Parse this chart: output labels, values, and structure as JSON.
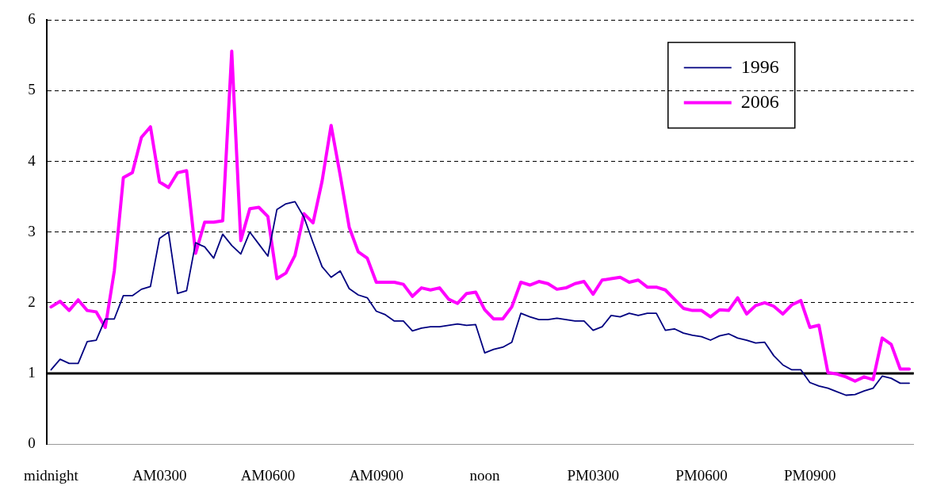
{
  "chart_data": {
    "type": "line",
    "categories": [
      "midnight",
      null,
      null,
      null,
      null,
      null,
      null,
      null,
      null,
      null,
      null,
      null,
      "AM0300",
      null,
      null,
      null,
      null,
      null,
      null,
      null,
      null,
      null,
      null,
      null,
      "AM0600",
      null,
      null,
      null,
      null,
      null,
      null,
      null,
      null,
      null,
      null,
      null,
      "AM0900",
      null,
      null,
      null,
      null,
      null,
      null,
      null,
      null,
      null,
      null,
      null,
      "noon",
      null,
      null,
      null,
      null,
      null,
      null,
      null,
      null,
      null,
      null,
      null,
      "PM0300",
      null,
      null,
      null,
      null,
      null,
      null,
      null,
      null,
      null,
      null,
      null,
      "PM0600",
      null,
      null,
      null,
      null,
      null,
      null,
      null,
      null,
      null,
      null,
      null,
      "PM0900",
      null,
      null,
      null,
      null,
      null,
      null,
      null,
      null,
      null,
      null,
      null
    ],
    "series": [
      {
        "name": "1996",
        "color": "#000080",
        "values": [
          1.05,
          1.2,
          1.14,
          1.14,
          1.45,
          1.47,
          1.77,
          1.77,
          2.1,
          2.1,
          2.19,
          2.23,
          2.91,
          3.0,
          2.13,
          2.17,
          2.85,
          2.79,
          2.63,
          2.97,
          2.81,
          2.69,
          3.0,
          2.83,
          2.66,
          3.32,
          3.4,
          3.43,
          3.21,
          2.85,
          2.51,
          2.36,
          2.45,
          2.2,
          2.11,
          2.07,
          1.88,
          1.83,
          1.74,
          1.74,
          1.6,
          1.64,
          1.66,
          1.66,
          1.68,
          1.7,
          1.68,
          1.69,
          1.29,
          1.34,
          1.37,
          1.44,
          1.85,
          1.8,
          1.76,
          1.76,
          1.78,
          1.76,
          1.74,
          1.74,
          1.61,
          1.66,
          1.82,
          1.8,
          1.85,
          1.82,
          1.85,
          1.85,
          1.61,
          1.63,
          1.57,
          1.54,
          1.52,
          1.47,
          1.53,
          1.56,
          1.5,
          1.47,
          1.43,
          1.44,
          1.25,
          1.12,
          1.05,
          1.05,
          0.87,
          0.82,
          0.79,
          0.74,
          0.69,
          0.7,
          0.75,
          0.79,
          0.96,
          0.93,
          0.86,
          0.86
        ]
      },
      {
        "name": "2006",
        "color": "#ff00ff",
        "values": [
          1.94,
          2.02,
          1.89,
          2.04,
          1.89,
          1.87,
          1.65,
          2.45,
          3.77,
          3.84,
          4.34,
          4.49,
          3.71,
          3.63,
          3.84,
          3.87,
          2.7,
          3.14,
          3.14,
          3.16,
          5.56,
          2.88,
          3.33,
          3.35,
          3.22,
          2.34,
          2.42,
          2.67,
          3.26,
          3.13,
          3.72,
          4.51,
          3.81,
          3.07,
          2.72,
          2.63,
          2.29,
          2.29,
          2.29,
          2.26,
          2.09,
          2.21,
          2.18,
          2.21,
          2.05,
          1.99,
          2.13,
          2.15,
          1.9,
          1.77,
          1.77,
          1.94,
          2.29,
          2.25,
          2.3,
          2.27,
          2.19,
          2.21,
          2.27,
          2.3,
          2.12,
          2.32,
          2.34,
          2.36,
          2.29,
          2.32,
          2.22,
          2.22,
          2.18,
          2.05,
          1.92,
          1.89,
          1.89,
          1.8,
          1.9,
          1.89,
          2.07,
          1.84,
          1.96,
          2.0,
          1.95,
          1.84,
          1.97,
          2.03,
          1.65,
          1.68,
          1.01,
          0.99,
          0.95,
          0.89,
          0.95,
          0.91,
          1.5,
          1.41,
          1.06,
          1.06
        ]
      }
    ],
    "ylim": [
      0,
      6
    ],
    "yticks": [
      0,
      1,
      2,
      3,
      4,
      5,
      6
    ],
    "ref_lines": [
      {
        "axis": "y",
        "value": 1,
        "color": "#000000",
        "line_style": "solid"
      }
    ],
    "grid": "y",
    "legend": "top right",
    "marker": "none",
    "line_style": "solid"
  }
}
